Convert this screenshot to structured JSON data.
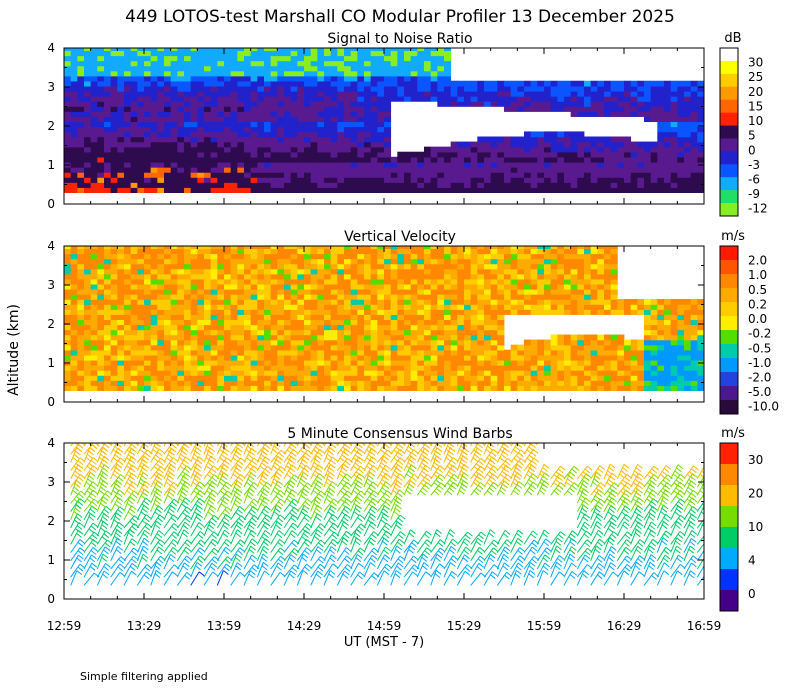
{
  "title": "449 LOTOS-test Marshall CO Modular Profiler 13 December 2025",
  "ylabel": "Altitude (km)",
  "xlabel": "UT  (MST - 7)",
  "footnote": "Simple filtering applied",
  "x_ticks": [
    "12:59",
    "13:29",
    "13:59",
    "14:29",
    "14:59",
    "15:29",
    "15:59",
    "16:29",
    "16:59"
  ],
  "chart_data": [
    {
      "type": "heatmap",
      "title": "Signal to Noise Ratio",
      "x_range": [
        "12:59",
        "16:59"
      ],
      "ylim": [
        0,
        4
      ],
      "y_ticks": [
        "0",
        "1",
        "2",
        "3",
        "4"
      ],
      "colorbar_unit": "dB",
      "colorbar_labels": [
        "30",
        "25",
        "20",
        "15",
        "10",
        "5",
        "0",
        "-3",
        "-6",
        "-9",
        "-12"
      ],
      "colors": [
        "#ffffff",
        "#ffff00",
        "#ffcc00",
        "#ff9900",
        "#ff6600",
        "#ff2200",
        "#2e0a4f",
        "#5a1a8f",
        "#2222cc",
        "#0a55ff",
        "#11aaff",
        "#22dd66",
        "#88ee22"
      ],
      "description_levels": {
        "near_surface_0.3_to_1km": "0 to 10 dB, occasional 10-15 dB before 14:00",
        "mid_1_to_2.5km": "-6 to 5 dB",
        "upper_2.5_to_4km": "-12 to -3 dB, missing after 15:10 above 2 km"
      }
    },
    {
      "type": "heatmap",
      "title": "Vertical Velocity",
      "x_range": [
        "12:59",
        "16:59"
      ],
      "ylim": [
        0,
        4
      ],
      "y_ticks": [
        "0",
        "1",
        "2",
        "3",
        "4"
      ],
      "colorbar_unit": "m/s",
      "colorbar_labels": [
        "2.0",
        "1.0",
        "0.5",
        "0.2",
        "0.0",
        "-0.2",
        "-0.5",
        "-1.0",
        "-2.0",
        "-5.0",
        "-10.0"
      ],
      "colors": [
        "#ff1a00",
        "#ff5500",
        "#ff8800",
        "#ffaa00",
        "#ffcc00",
        "#ffee00",
        "#55dd00",
        "#00ccaa",
        "#0099ff",
        "#2244dd",
        "#4a1a8a",
        "#2a0a3a"
      ],
      "dominant_range": "0.0 to 1.0 m/s"
    },
    {
      "type": "scatter",
      "title": "5 Minute Consensus Wind Barbs",
      "x_range": [
        "12:59",
        "16:59"
      ],
      "ylim": [
        0,
        4
      ],
      "y_ticks": [
        "0",
        "1",
        "2",
        "3",
        "4"
      ],
      "colorbar_unit": "m/s",
      "colorbar_labels": [
        "30",
        "20",
        "10",
        "4",
        "0"
      ],
      "colors": [
        "#ff2200",
        "#ff8800",
        "#ffbb00",
        "#77dd00",
        "#00cc66",
        "#00aaff",
        "#0033ff",
        "#440088"
      ],
      "speed_by_height": [
        {
          "height_km": 0.5,
          "speed": 8
        },
        {
          "height_km": 1.0,
          "speed": 10
        },
        {
          "height_km": 1.5,
          "speed": 12
        },
        {
          "height_km": 2.0,
          "speed": 14
        },
        {
          "height_km": 2.5,
          "speed": 18
        },
        {
          "height_km": 3.0,
          "speed": 21
        },
        {
          "height_km": 3.5,
          "speed": 22
        },
        {
          "height_km": 4.0,
          "speed": 22
        }
      ]
    }
  ]
}
